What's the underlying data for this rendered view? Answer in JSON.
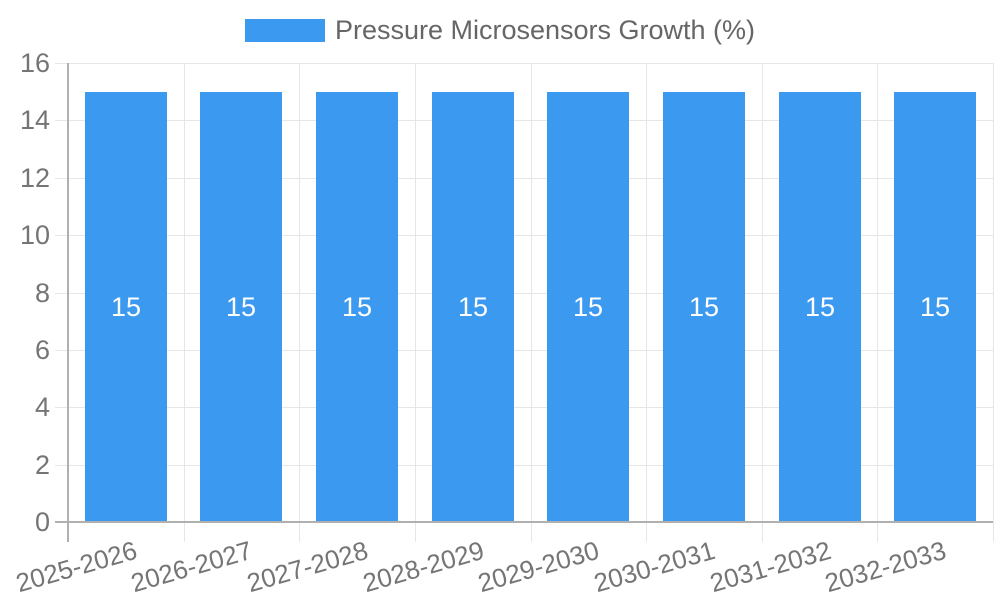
{
  "legend": {
    "label": "Pressure Microsensors Growth (%)",
    "position": "top"
  },
  "chart_data": {
    "type": "bar",
    "title": "Pressure Microsensors Growth (%)",
    "categories": [
      "2025-2026",
      "2026-2027",
      "2027-2028",
      "2028-2029",
      "2029-2030",
      "2030-2031",
      "2031-2032",
      "2032-2033"
    ],
    "values": [
      15,
      15,
      15,
      15,
      15,
      15,
      15,
      15
    ],
    "bar_value_labels": [
      "15",
      "15",
      "15",
      "15",
      "15",
      "15",
      "15",
      "15"
    ],
    "xlabel": "",
    "ylabel": "",
    "ylim": [
      0,
      16
    ],
    "yticks": [
      0,
      2,
      4,
      6,
      8,
      10,
      12,
      14,
      16
    ],
    "grid": true,
    "legend_position": "top-center",
    "x_tick_label_rotation_deg": -16,
    "colors": {
      "bar": "#3B99F0",
      "grid_line": "#e6e6e6",
      "axis_line": "#b0b0b0",
      "tick_label": "#757575",
      "legend_text": "#666666",
      "bar_value_label": "#ffffff",
      "background": "#ffffff"
    }
  }
}
